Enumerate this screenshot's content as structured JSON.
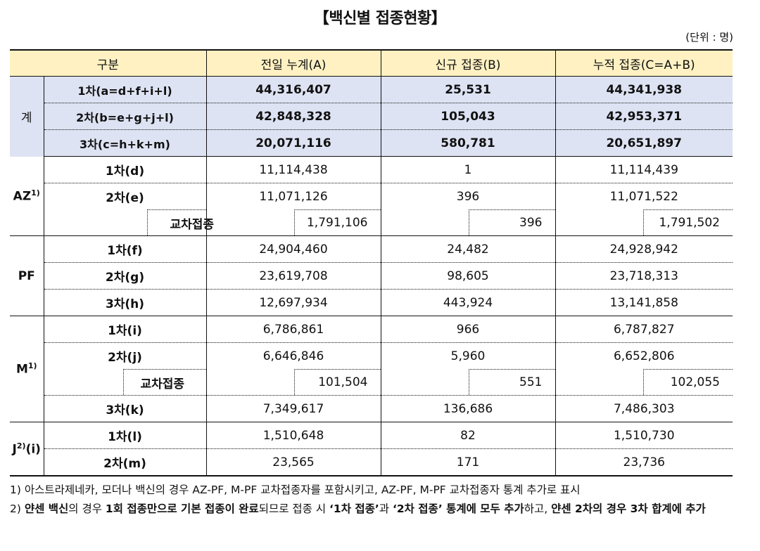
{
  "title": "【백신별 접종현황】",
  "unit": "(단위 : 명)",
  "headers": [
    "구분",
    "전일 누계(A)",
    "신규 접종(B)",
    "누적 접종(C=A+B)"
  ],
  "total": {
    "group": "계",
    "rows": [
      {
        "label": "1차(a=d+f+i+l)",
        "prev": "44,316,407",
        "new": "25,531",
        "cum": "44,341,938"
      },
      {
        "label": "2차(b=e+g+j+l)",
        "prev": "42,848,328",
        "new": "105,043",
        "cum": "42,953,371"
      },
      {
        "label": "3차(c=h+k+m)",
        "prev": "20,071,116",
        "new": "580,781",
        "cum": "20,651,897"
      }
    ]
  },
  "az": {
    "group": "AZ",
    "sup": "1)",
    "rows": [
      {
        "label": "1차(d)",
        "prev": "11,114,438",
        "new": "1",
        "cum": "11,114,439"
      },
      {
        "label": "2차(e)",
        "prev": "11,071,126",
        "new": "396",
        "cum": "11,071,522"
      }
    ],
    "cross": {
      "label": "교차접종",
      "prev": "1,791,106",
      "new": "396",
      "cum": "1,791,502"
    }
  },
  "pf": {
    "group": "PF",
    "rows": [
      {
        "label": "1차(f)",
        "prev": "24,904,460",
        "new": "24,482",
        "cum": "24,928,942"
      },
      {
        "label": "2차(g)",
        "prev": "23,619,708",
        "new": "98,605",
        "cum": "23,718,313"
      },
      {
        "label": "3차(h)",
        "prev": "12,697,934",
        "new": "443,924",
        "cum": "13,141,858"
      }
    ]
  },
  "m": {
    "group": "M",
    "sup": "1)",
    "rows": [
      {
        "label": "1차(i)",
        "prev": "6,786,861",
        "new": "966",
        "cum": "6,787,827"
      },
      {
        "label": "2차(j)",
        "prev": "6,646,846",
        "new": "5,960",
        "cum": "6,652,806"
      }
    ],
    "cross": {
      "label": "교차접종",
      "prev": "101,504",
      "new": "551",
      "cum": "102,055"
    },
    "row3": {
      "label": "3차(k)",
      "prev": "7,349,617",
      "new": "136,686",
      "cum": "7,486,303"
    }
  },
  "j": {
    "group": "J",
    "sup": "2)",
    "group_suffix": "(i)",
    "rows": [
      {
        "label": "1차(l)",
        "prev": "1,510,648",
        "new": "82",
        "cum": "1,510,730"
      },
      {
        "label": "2차(m)",
        "prev": "23,565",
        "new": "171",
        "cum": "23,736"
      }
    ]
  },
  "notes": {
    "n1": "1) 아스트라제네카, 모더나 백신의 경우 AZ-PF, M-PF 교차접종자를 포함시키고, AZ-PF, M-PF 교차접종자 통계 추가로 표시",
    "n2_parts": [
      "2) ",
      "얀센 백신",
      "의 경우 ",
      "1회 접종만으로 기본 접종이 완료",
      "되므로 접종 시 ",
      "‘1차 접종’",
      "과 ",
      "‘2차 접종’ 통계에 모두 추가",
      "하고, ",
      "얀센 2차의 경우 3차 합계에 추가"
    ]
  }
}
